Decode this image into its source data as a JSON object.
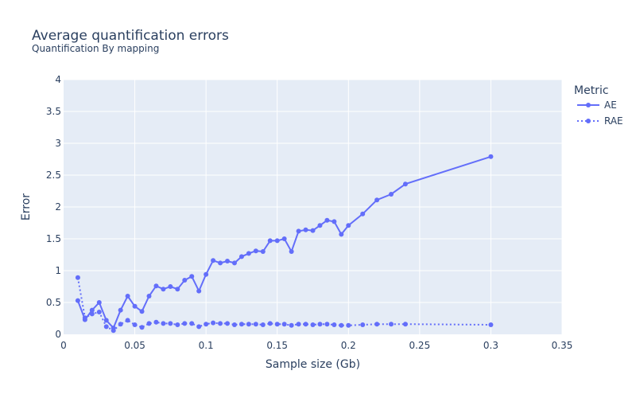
{
  "chart_data": {
    "type": "line",
    "title": "Average quantification errors",
    "subtitle": "Quantification By mapping",
    "xlabel": "Sample size (Gb)",
    "ylabel": "Error",
    "xlim": [
      0,
      0.35
    ],
    "ylim": [
      0,
      4
    ],
    "x_ticks": [
      0,
      0.05,
      0.1,
      0.15,
      0.2,
      0.25,
      0.3,
      0.35
    ],
    "x_tick_labels": [
      "0",
      "0.05",
      "0.1",
      "0.15",
      "0.2",
      "0.25",
      "0.3",
      "0.35"
    ],
    "y_ticks": [
      0,
      0.5,
      1,
      1.5,
      2,
      2.5,
      3,
      3.5,
      4
    ],
    "y_tick_labels": [
      "0",
      "0.5",
      "1",
      "1.5",
      "2",
      "2.5",
      "3",
      "3.5",
      "4"
    ],
    "grid": true,
    "legend_title": "Metric",
    "legend_position": "top-right",
    "colors": {
      "series": "#636efa",
      "plot_bg": "#e5ecf6",
      "grid": "#ffffff",
      "text": "#2a3f5f"
    },
    "x": [
      0.01,
      0.015,
      0.02,
      0.025,
      0.03,
      0.035,
      0.04,
      0.045,
      0.05,
      0.055,
      0.06,
      0.065,
      0.07,
      0.075,
      0.08,
      0.085,
      0.09,
      0.095,
      0.1,
      0.105,
      0.11,
      0.115,
      0.12,
      0.125,
      0.13,
      0.135,
      0.14,
      0.145,
      0.15,
      0.155,
      0.16,
      0.165,
      0.17,
      0.175,
      0.18,
      0.185,
      0.19,
      0.195,
      0.2,
      0.21,
      0.22,
      0.23,
      0.24,
      0.3
    ],
    "series": [
      {
        "name": "AE",
        "dash": "solid",
        "values": [
          0.53,
          0.23,
          0.38,
          0.5,
          0.22,
          0.1,
          0.38,
          0.6,
          0.44,
          0.36,
          0.6,
          0.76,
          0.71,
          0.75,
          0.71,
          0.85,
          0.91,
          0.68,
          0.94,
          1.16,
          1.12,
          1.15,
          1.12,
          1.22,
          1.27,
          1.31,
          1.3,
          1.47,
          1.47,
          1.5,
          1.3,
          1.62,
          1.64,
          1.63,
          1.71,
          1.79,
          1.77,
          1.57,
          1.71,
          1.89,
          2.11,
          2.2,
          2.36,
          2.79
        ]
      },
      {
        "name": "RAE",
        "dash": "dot",
        "values": [
          0.89,
          0.26,
          0.32,
          0.35,
          0.12,
          0.06,
          0.16,
          0.22,
          0.15,
          0.11,
          0.17,
          0.19,
          0.17,
          0.17,
          0.15,
          0.17,
          0.17,
          0.12,
          0.16,
          0.18,
          0.17,
          0.17,
          0.15,
          0.16,
          0.16,
          0.16,
          0.15,
          0.17,
          0.16,
          0.16,
          0.14,
          0.16,
          0.16,
          0.15,
          0.16,
          0.16,
          0.15,
          0.14,
          0.14,
          0.15,
          0.16,
          0.16,
          0.16,
          0.15
        ]
      }
    ]
  }
}
